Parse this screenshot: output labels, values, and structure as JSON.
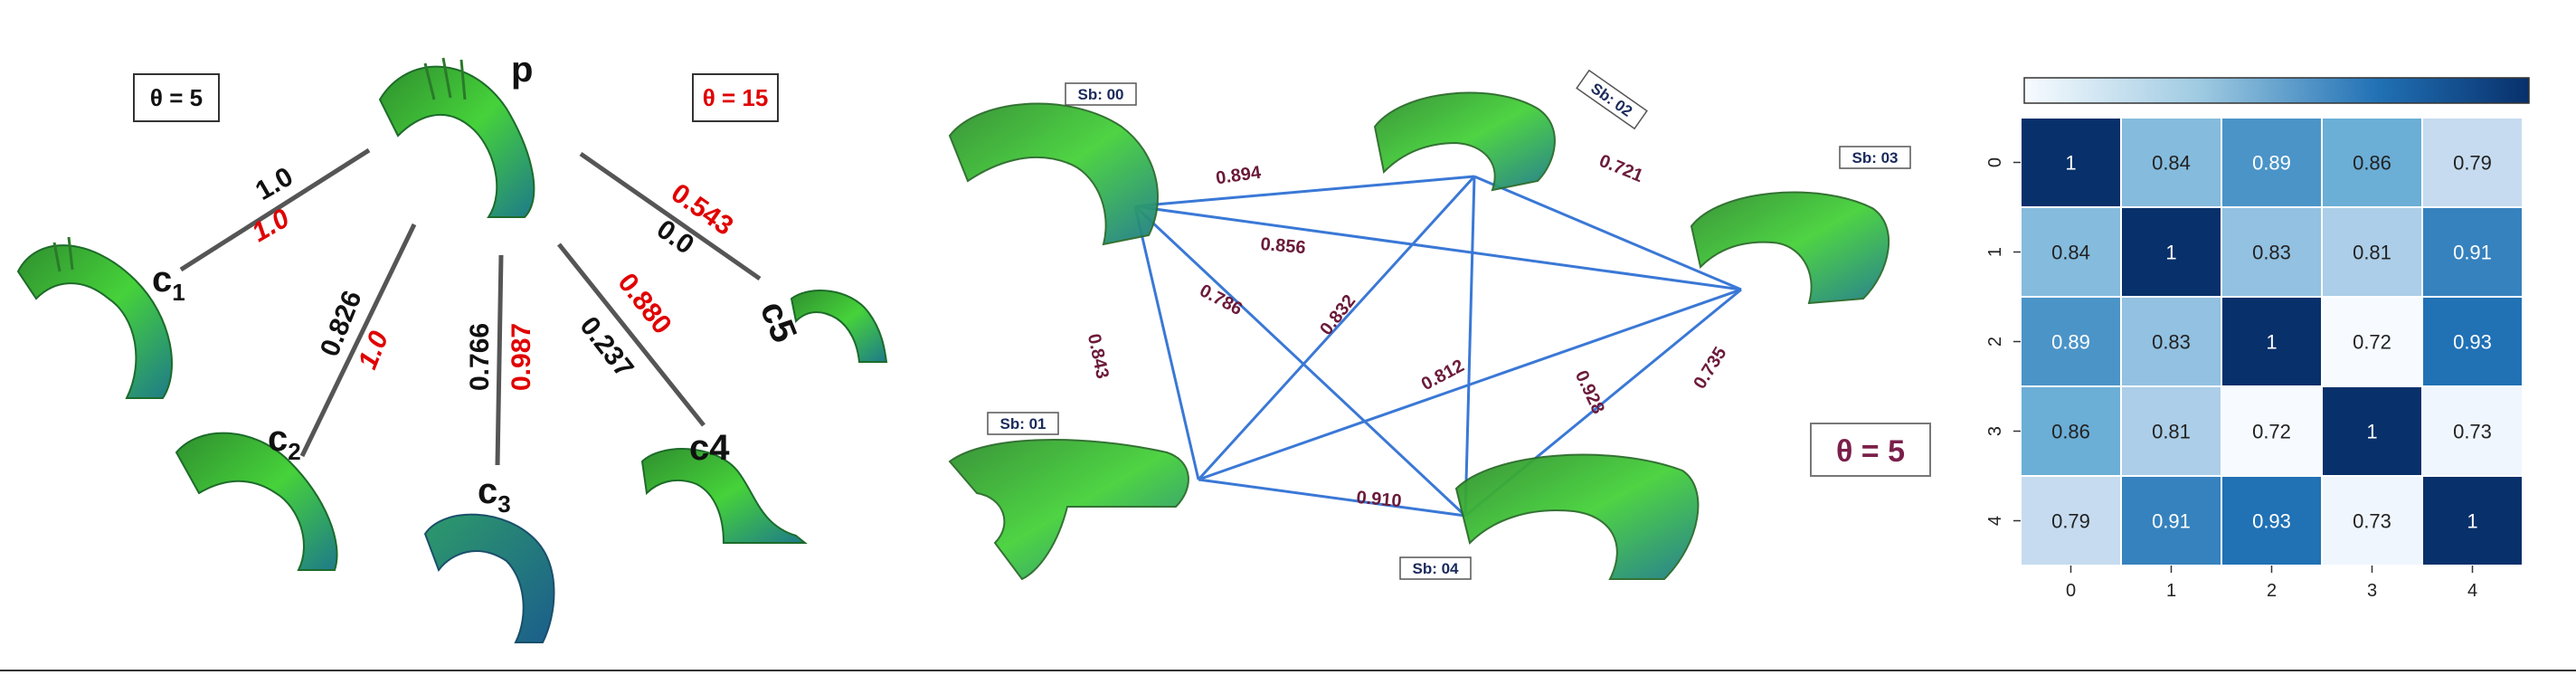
{
  "left_panel": {
    "theta_black": "θ = 5",
    "theta_red": "θ = 15",
    "parent_label": "p",
    "children": [
      {
        "label": "c",
        "sub": "1",
        "black": "1.0",
        "red": "1.0"
      },
      {
        "label": "c",
        "sub": "2",
        "black": "0.826",
        "red": "1.0"
      },
      {
        "label": "c",
        "sub": "3",
        "black": "0.766",
        "red": "0.987"
      },
      {
        "label": "c4",
        "sub": "",
        "black": "0.237",
        "red": "0.880"
      },
      {
        "label": "c5",
        "sub": "",
        "black": "0.0",
        "red": "0.543"
      }
    ]
  },
  "middle_panel": {
    "theta": "θ = 5",
    "subjects": [
      "Sb: 00",
      "Sb: 01",
      "Sb: 02",
      "Sb: 03",
      "Sb: 04"
    ],
    "edges": [
      {
        "a": 0,
        "b": 2,
        "w": "0.894"
      },
      {
        "a": 0,
        "b": 3,
        "w": "0.856"
      },
      {
        "a": 0,
        "b": 4,
        "w": "0.786"
      },
      {
        "a": 0,
        "b": 1,
        "w": "0.843"
      },
      {
        "a": 1,
        "b": 2,
        "w": "0.832"
      },
      {
        "a": 1,
        "b": 3,
        "w": "0.812"
      },
      {
        "a": 1,
        "b": 4,
        "w": "0.910"
      },
      {
        "a": 2,
        "b": 3,
        "w": "0.721"
      },
      {
        "a": 2,
        "b": 4,
        "w": "0.928"
      },
      {
        "a": 3,
        "b": 4,
        "w": "0.735"
      }
    ]
  },
  "chart_data": {
    "type": "heatmap",
    "x_ticks": [
      "0",
      "1",
      "2",
      "3",
      "4"
    ],
    "y_ticks": [
      "0",
      "1",
      "2",
      "3",
      "4"
    ],
    "values": [
      [
        1,
        0.84,
        0.89,
        0.86,
        0.79
      ],
      [
        0.84,
        1,
        0.83,
        0.81,
        0.91
      ],
      [
        0.89,
        0.83,
        1,
        0.72,
        0.93
      ],
      [
        0.86,
        0.81,
        0.72,
        1,
        0.73
      ],
      [
        0.79,
        0.91,
        0.93,
        0.73,
        1
      ]
    ],
    "cell_labels": [
      [
        "1",
        "0.84",
        "0.89",
        "0.86",
        "0.79"
      ],
      [
        "0.84",
        "1",
        "0.83",
        "0.81",
        "0.91"
      ],
      [
        "0.89",
        "0.83",
        "1",
        "0.72",
        "0.93"
      ],
      [
        "0.86",
        "0.81",
        "0.72",
        "1",
        "0.73"
      ],
      [
        "0.79",
        "0.91",
        "0.93",
        "0.73",
        "1"
      ]
    ],
    "vmin": 0.72,
    "vmax": 1.0,
    "colormap": "Blues",
    "colorbar": "horizontal, top"
  }
}
